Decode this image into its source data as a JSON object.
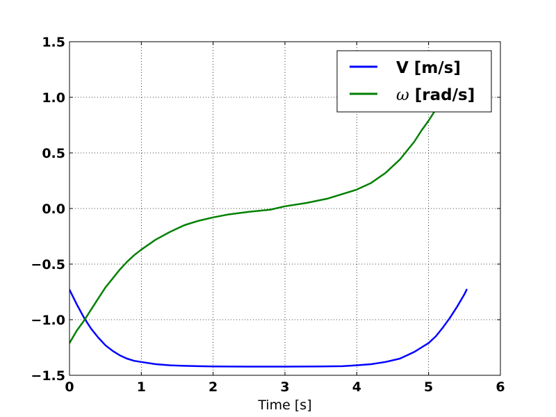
{
  "chart_data": {
    "type": "line",
    "title": "",
    "xlabel": "Time [s]",
    "ylabel": "",
    "xlim": [
      0,
      6
    ],
    "ylim": [
      -1.5,
      1.5
    ],
    "xticks": [
      0,
      1,
      2,
      3,
      4,
      5,
      6
    ],
    "xtick_labels": [
      "0",
      "1",
      "2",
      "3",
      "4",
      "5",
      "6"
    ],
    "yticks": [
      -1.5,
      -1.0,
      -0.5,
      0.0,
      0.5,
      1.0,
      1.5
    ],
    "ytick_labels": [
      "−1.5",
      "−1.0",
      "−0.5",
      "0.0",
      "0.5",
      "1.0",
      "1.5"
    ],
    "grid": true,
    "legend_position": "top-right",
    "series": [
      {
        "name": "V [m/s]",
        "legend_main": "V [m/s]",
        "legend_symbol": "",
        "color": "#0000ff",
        "x": [
          0,
          0.1,
          0.2,
          0.3,
          0.4,
          0.5,
          0.6,
          0.7,
          0.8,
          0.9,
          1.0,
          1.2,
          1.4,
          1.6,
          1.8,
          2.0,
          2.5,
          3.0,
          3.5,
          3.8,
          4.0,
          4.2,
          4.4,
          4.6,
          4.7,
          4.8,
          4.9,
          5.0,
          5.1,
          5.2,
          5.3,
          5.4,
          5.5,
          5.53
        ],
        "y": [
          -0.73,
          -0.86,
          -0.98,
          -1.08,
          -1.16,
          -1.23,
          -1.28,
          -1.32,
          -1.35,
          -1.37,
          -1.38,
          -1.4,
          -1.41,
          -1.415,
          -1.418,
          -1.42,
          -1.422,
          -1.422,
          -1.42,
          -1.418,
          -1.41,
          -1.4,
          -1.38,
          -1.35,
          -1.32,
          -1.29,
          -1.25,
          -1.21,
          -1.15,
          -1.07,
          -0.98,
          -0.88,
          -0.77,
          -0.73
        ]
      },
      {
        "name": "ω [rad/s]",
        "legend_main": " [rad/s]",
        "legend_symbol": "ω",
        "color": "#008000",
        "x": [
          0,
          0.1,
          0.2,
          0.3,
          0.4,
          0.5,
          0.6,
          0.7,
          0.8,
          0.9,
          1.0,
          1.2,
          1.4,
          1.6,
          1.8,
          2.0,
          2.2,
          2.5,
          2.8,
          3.0,
          3.3,
          3.6,
          3.8,
          4.0,
          4.2,
          4.4,
          4.6,
          4.8,
          4.9,
          5.0,
          5.1,
          5.2,
          5.3,
          5.4,
          5.53
        ],
        "y": [
          -1.21,
          -1.1,
          -1.01,
          -0.91,
          -0.81,
          -0.71,
          -0.63,
          -0.55,
          -0.48,
          -0.42,
          -0.37,
          -0.28,
          -0.21,
          -0.15,
          -0.11,
          -0.08,
          -0.055,
          -0.03,
          -0.01,
          0.02,
          0.05,
          0.09,
          0.13,
          0.17,
          0.23,
          0.32,
          0.44,
          0.6,
          0.7,
          0.79,
          0.89,
          0.99,
          1.09,
          1.19,
          1.29
        ]
      }
    ]
  }
}
